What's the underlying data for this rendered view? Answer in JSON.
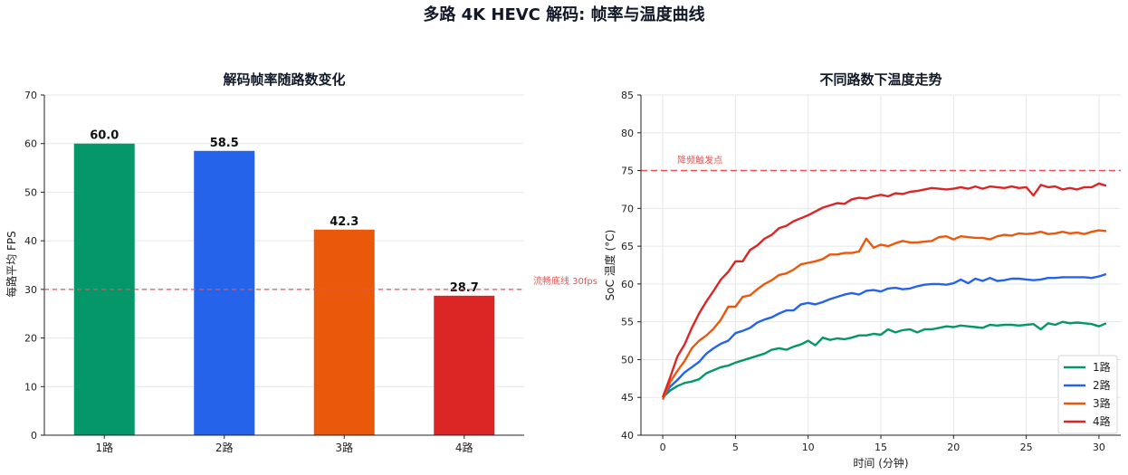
{
  "figure": {
    "title": "多路 4K HEVC 解码: 帧率与温度曲线"
  },
  "chart_data": [
    {
      "type": "bar",
      "title": "解码帧率随路数变化",
      "xlabel": "",
      "ylabel": "每路平均 FPS",
      "categories": [
        "1路",
        "2路",
        "3路",
        "4路"
      ],
      "values": [
        60.0,
        58.5,
        42.3,
        28.7
      ],
      "value_labels": [
        "60.0",
        "58.5",
        "42.3",
        "28.7"
      ],
      "colors": [
        "#059669",
        "#2563eb",
        "#ea580c",
        "#dc2626"
      ],
      "ylim": [
        0,
        70
      ],
      "yticks": [
        0,
        10,
        20,
        30,
        40,
        50,
        60,
        70
      ],
      "reference_line": {
        "value": 30,
        "label": "流畅底线 30fps",
        "color": "#e05656"
      },
      "grid": "horizontal"
    },
    {
      "type": "line",
      "title": "不同路数下温度走势",
      "xlabel": "时间 (分钟)",
      "ylabel": "SoC 温度 (°C)",
      "xlim": [
        -1.5,
        31.5
      ],
      "ylim": [
        40,
        85
      ],
      "xticks": [
        0,
        5,
        10,
        15,
        20,
        25,
        30
      ],
      "yticks": [
        40,
        45,
        50,
        55,
        60,
        65,
        70,
        75,
        80,
        85
      ],
      "reference_line": {
        "value": 75,
        "label": "降频触发点",
        "color": "#e05656"
      },
      "legend": "lower-right",
      "grid": "both",
      "series": [
        {
          "name": "1路",
          "color": "#059669",
          "points": [
            [
              0,
              45
            ],
            [
              0.5,
              45.9
            ],
            [
              1,
              46.5
            ],
            [
              1.5,
              46.9
            ],
            [
              2,
              47.1
            ],
            [
              2.5,
              47.4
            ],
            [
              3,
              48.2
            ],
            [
              3.5,
              48.6
            ],
            [
              4,
              49.0
            ],
            [
              4.5,
              49.2
            ],
            [
              5,
              49.6
            ],
            [
              5.5,
              49.9
            ],
            [
              6,
              50.2
            ],
            [
              6.5,
              50.5
            ],
            [
              7,
              50.8
            ],
            [
              7.5,
              51.3
            ],
            [
              8,
              51.5
            ],
            [
              8.5,
              51.3
            ],
            [
              9,
              51.7
            ],
            [
              9.5,
              52.0
            ],
            [
              10,
              52.5
            ],
            [
              10.5,
              51.9
            ],
            [
              11,
              52.9
            ],
            [
              11.5,
              52.6
            ],
            [
              12,
              52.8
            ],
            [
              12.5,
              52.7
            ],
            [
              13,
              52.9
            ],
            [
              13.5,
              53.2
            ],
            [
              14,
              53.2
            ],
            [
              14.5,
              53.4
            ],
            [
              15,
              53.3
            ],
            [
              15.5,
              54.0
            ],
            [
              16,
              53.6
            ],
            [
              16.5,
              53.9
            ],
            [
              17,
              54.0
            ],
            [
              17.5,
              53.6
            ],
            [
              18,
              54.0
            ],
            [
              18.5,
              54.0
            ],
            [
              19,
              54.2
            ],
            [
              19.5,
              54.4
            ],
            [
              20,
              54.3
            ],
            [
              20.5,
              54.5
            ],
            [
              21,
              54.4
            ],
            [
              21.5,
              54.3
            ],
            [
              22,
              54.2
            ],
            [
              22.5,
              54.6
            ],
            [
              23,
              54.5
            ],
            [
              23.5,
              54.6
            ],
            [
              24,
              54.6
            ],
            [
              24.5,
              54.5
            ],
            [
              25,
              54.6
            ],
            [
              25.5,
              54.7
            ],
            [
              26,
              54.0
            ],
            [
              26.5,
              54.8
            ],
            [
              27,
              54.6
            ],
            [
              27.5,
              55.0
            ],
            [
              28,
              54.8
            ],
            [
              28.5,
              54.9
            ],
            [
              29,
              54.8
            ],
            [
              29.5,
              54.7
            ],
            [
              30,
              54.4
            ],
            [
              30.5,
              54.8
            ]
          ]
        },
        {
          "name": "2路",
          "color": "#2563eb",
          "points": [
            [
              0,
              45
            ],
            [
              0.5,
              46.4
            ],
            [
              1,
              47.3
            ],
            [
              1.5,
              48.3
            ],
            [
              2,
              49.0
            ],
            [
              2.5,
              49.7
            ],
            [
              3,
              50.8
            ],
            [
              3.5,
              51.5
            ],
            [
              4,
              52.1
            ],
            [
              4.5,
              52.5
            ],
            [
              5,
              53.5
            ],
            [
              5.5,
              53.8
            ],
            [
              6,
              54.2
            ],
            [
              6.5,
              54.9
            ],
            [
              7,
              55.3
            ],
            [
              7.5,
              55.6
            ],
            [
              8,
              56.1
            ],
            [
              8.5,
              56.5
            ],
            [
              9,
              56.5
            ],
            [
              9.5,
              57.3
            ],
            [
              10,
              57.5
            ],
            [
              10.5,
              57.3
            ],
            [
              11,
              57.6
            ],
            [
              11.5,
              58.0
            ],
            [
              12,
              58.3
            ],
            [
              12.5,
              58.6
            ],
            [
              13,
              58.8
            ],
            [
              13.5,
              58.6
            ],
            [
              14,
              59.1
            ],
            [
              14.5,
              59.2
            ],
            [
              15,
              59.0
            ],
            [
              15.5,
              59.4
            ],
            [
              16,
              59.5
            ],
            [
              16.5,
              59.3
            ],
            [
              17,
              59.4
            ],
            [
              17.5,
              59.7
            ],
            [
              18,
              59.9
            ],
            [
              18.5,
              60.0
            ],
            [
              19,
              60.0
            ],
            [
              19.5,
              59.9
            ],
            [
              20,
              60.1
            ],
            [
              20.5,
              60.6
            ],
            [
              21,
              60.1
            ],
            [
              21.5,
              60.7
            ],
            [
              22,
              60.4
            ],
            [
              22.5,
              60.8
            ],
            [
              23,
              60.4
            ],
            [
              23.5,
              60.5
            ],
            [
              24,
              60.7
            ],
            [
              24.5,
              60.7
            ],
            [
              25,
              60.6
            ],
            [
              25.5,
              60.5
            ],
            [
              26,
              60.6
            ],
            [
              26.5,
              60.8
            ],
            [
              27,
              60.8
            ],
            [
              27.5,
              60.9
            ],
            [
              28,
              60.9
            ],
            [
              28.5,
              60.9
            ],
            [
              29,
              60.9
            ],
            [
              29.5,
              60.8
            ],
            [
              30,
              61.0
            ],
            [
              30.5,
              61.3
            ]
          ]
        },
        {
          "name": "3路",
          "color": "#ea580c",
          "points": [
            [
              0,
              44.7
            ],
            [
              0.5,
              47.0
            ],
            [
              1,
              48.5
            ],
            [
              1.5,
              49.8
            ],
            [
              2,
              51.5
            ],
            [
              2.5,
              52.5
            ],
            [
              3,
              53.2
            ],
            [
              3.5,
              54.1
            ],
            [
              4,
              55.3
            ],
            [
              4.5,
              57.0
            ],
            [
              5,
              57.0
            ],
            [
              5.5,
              58.3
            ],
            [
              6,
              58.5
            ],
            [
              6.5,
              59.3
            ],
            [
              7,
              60.0
            ],
            [
              7.5,
              60.5
            ],
            [
              8,
              61.2
            ],
            [
              8.5,
              61.4
            ],
            [
              9,
              61.9
            ],
            [
              9.5,
              62.6
            ],
            [
              10,
              62.8
            ],
            [
              10.5,
              63.0
            ],
            [
              11,
              63.3
            ],
            [
              11.5,
              63.9
            ],
            [
              12,
              63.9
            ],
            [
              12.5,
              64.1
            ],
            [
              13,
              64.1
            ],
            [
              13.5,
              64.3
            ],
            [
              14,
              66.0
            ],
            [
              14.5,
              64.8
            ],
            [
              15,
              65.2
            ],
            [
              15.5,
              65.0
            ],
            [
              16,
              65.4
            ],
            [
              16.5,
              65.7
            ],
            [
              17,
              65.5
            ],
            [
              17.5,
              65.5
            ],
            [
              18,
              65.6
            ],
            [
              18.5,
              65.7
            ],
            [
              19,
              66.2
            ],
            [
              19.5,
              66.3
            ],
            [
              20,
              65.9
            ],
            [
              20.5,
              66.3
            ],
            [
              21,
              66.2
            ],
            [
              21.5,
              66.1
            ],
            [
              22,
              66.1
            ],
            [
              22.5,
              65.9
            ],
            [
              23,
              66.3
            ],
            [
              23.5,
              66.5
            ],
            [
              24,
              66.4
            ],
            [
              24.5,
              66.7
            ],
            [
              25,
              66.6
            ],
            [
              25.5,
              66.7
            ],
            [
              26,
              66.9
            ],
            [
              26.5,
              66.6
            ],
            [
              27,
              66.7
            ],
            [
              27.5,
              66.9
            ],
            [
              28,
              66.7
            ],
            [
              28.5,
              66.8
            ],
            [
              29,
              66.6
            ],
            [
              29.5,
              66.9
            ],
            [
              30,
              67.1
            ],
            [
              30.5,
              67.0
            ]
          ]
        },
        {
          "name": "4路",
          "color": "#dc2626",
          "points": [
            [
              0,
              45
            ],
            [
              0.5,
              47.6
            ],
            [
              1,
              50.4
            ],
            [
              1.5,
              52.0
            ],
            [
              2,
              54.2
            ],
            [
              2.5,
              56.1
            ],
            [
              3,
              57.7
            ],
            [
              3.5,
              59.1
            ],
            [
              4,
              60.6
            ],
            [
              4.5,
              61.6
            ],
            [
              5,
              63.0
            ],
            [
              5.5,
              63.0
            ],
            [
              6,
              64.5
            ],
            [
              6.5,
              65.1
            ],
            [
              7,
              66.0
            ],
            [
              7.5,
              66.5
            ],
            [
              8,
              67.4
            ],
            [
              8.5,
              67.7
            ],
            [
              9,
              68.3
            ],
            [
              9.5,
              68.7
            ],
            [
              10,
              69.1
            ],
            [
              10.5,
              69.6
            ],
            [
              11,
              70.1
            ],
            [
              11.5,
              70.4
            ],
            [
              12,
              70.7
            ],
            [
              12.5,
              70.6
            ],
            [
              13,
              71.2
            ],
            [
              13.5,
              71.4
            ],
            [
              14,
              71.3
            ],
            [
              14.5,
              71.6
            ],
            [
              15,
              71.8
            ],
            [
              15.5,
              71.6
            ],
            [
              16,
              72.0
            ],
            [
              16.5,
              71.9
            ],
            [
              17,
              72.2
            ],
            [
              17.5,
              72.3
            ],
            [
              18,
              72.5
            ],
            [
              18.5,
              72.7
            ],
            [
              19,
              72.6
            ],
            [
              19.5,
              72.5
            ],
            [
              20,
              72.6
            ],
            [
              20.5,
              72.8
            ],
            [
              21,
              72.6
            ],
            [
              21.5,
              72.9
            ],
            [
              22,
              72.6
            ],
            [
              22.5,
              72.9
            ],
            [
              23,
              72.8
            ],
            [
              23.5,
              72.7
            ],
            [
              24,
              72.9
            ],
            [
              24.5,
              72.7
            ],
            [
              25,
              72.8
            ],
            [
              25.5,
              71.7
            ],
            [
              26,
              73.1
            ],
            [
              26.5,
              72.8
            ],
            [
              27,
              72.9
            ],
            [
              27.5,
              72.5
            ],
            [
              28,
              72.7
            ],
            [
              28.5,
              72.5
            ],
            [
              29,
              72.8
            ],
            [
              29.5,
              72.8
            ],
            [
              30,
              73.3
            ],
            [
              30.5,
              73.0
            ]
          ]
        }
      ]
    }
  ]
}
